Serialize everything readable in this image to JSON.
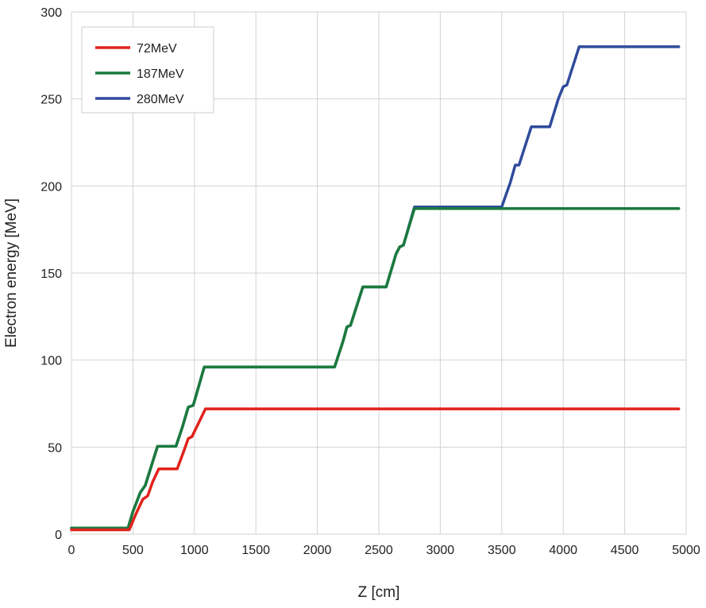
{
  "chart_data": {
    "type": "line",
    "title": "",
    "xlabel": "Z [cm]",
    "ylabel": "Electron energy [MeV]",
    "xlim": [
      0,
      5000
    ],
    "ylim": [
      0,
      300
    ],
    "x_ticks": [
      "0",
      "500",
      "1000",
      "1500",
      "2000",
      "2500",
      "3000",
      "3500",
      "4000",
      "4500",
      "5000"
    ],
    "y_ticks": [
      "0",
      "50",
      "100",
      "150",
      "200",
      "250",
      "300"
    ],
    "grid": true,
    "legend_position": "top-left",
    "series": [
      {
        "name": "280MeV",
        "color": "#2f4b9c",
        "points": [
          [
            0,
            3.5
          ],
          [
            460,
            3.5
          ],
          [
            500,
            13
          ],
          [
            560,
            24
          ],
          [
            600,
            28
          ],
          [
            640,
            37
          ],
          [
            700,
            50.5
          ],
          [
            850,
            50.5
          ],
          [
            900,
            61
          ],
          [
            950,
            73
          ],
          [
            990,
            74
          ],
          [
            1080,
            96
          ],
          [
            2140,
            96
          ],
          [
            2210,
            111
          ],
          [
            2240,
            119
          ],
          [
            2270,
            120
          ],
          [
            2370,
            142
          ],
          [
            2560,
            142
          ],
          [
            2640,
            161
          ],
          [
            2670,
            165
          ],
          [
            2700,
            166
          ],
          [
            2790,
            188
          ],
          [
            3500,
            188
          ],
          [
            3570,
            202
          ],
          [
            3610,
            212
          ],
          [
            3640,
            212
          ],
          [
            3740,
            234
          ],
          [
            3890,
            234
          ],
          [
            3960,
            250
          ],
          [
            4000,
            257
          ],
          [
            4030,
            258
          ],
          [
            4130,
            280
          ],
          [
            4940,
            280
          ]
        ]
      },
      {
        "name": "187MeV",
        "color": "#1a7a3c",
        "points": [
          [
            0,
            3.5
          ],
          [
            460,
            3.5
          ],
          [
            500,
            13
          ],
          [
            560,
            24
          ],
          [
            600,
            28
          ],
          [
            640,
            37
          ],
          [
            700,
            50.5
          ],
          [
            850,
            50.5
          ],
          [
            900,
            61
          ],
          [
            950,
            73
          ],
          [
            990,
            74
          ],
          [
            1080,
            96
          ],
          [
            2140,
            96
          ],
          [
            2210,
            111
          ],
          [
            2240,
            119
          ],
          [
            2270,
            120
          ],
          [
            2370,
            142
          ],
          [
            2560,
            142
          ],
          [
            2640,
            161
          ],
          [
            2670,
            165
          ],
          [
            2700,
            166
          ],
          [
            2790,
            187
          ],
          [
            4940,
            187
          ]
        ]
      },
      {
        "name": "72MeV",
        "color": "#e0221b",
        "points": [
          [
            0,
            2.5
          ],
          [
            470,
            2.5
          ],
          [
            520,
            11
          ],
          [
            580,
            20
          ],
          [
            620,
            22
          ],
          [
            660,
            30
          ],
          [
            710,
            37.5
          ],
          [
            860,
            37.5
          ],
          [
            910,
            47
          ],
          [
            950,
            55
          ],
          [
            980,
            56
          ],
          [
            1090,
            72
          ],
          [
            4940,
            72
          ]
        ]
      }
    ],
    "legend": [
      "72MeV",
      "187MeV",
      "280MeV"
    ]
  }
}
